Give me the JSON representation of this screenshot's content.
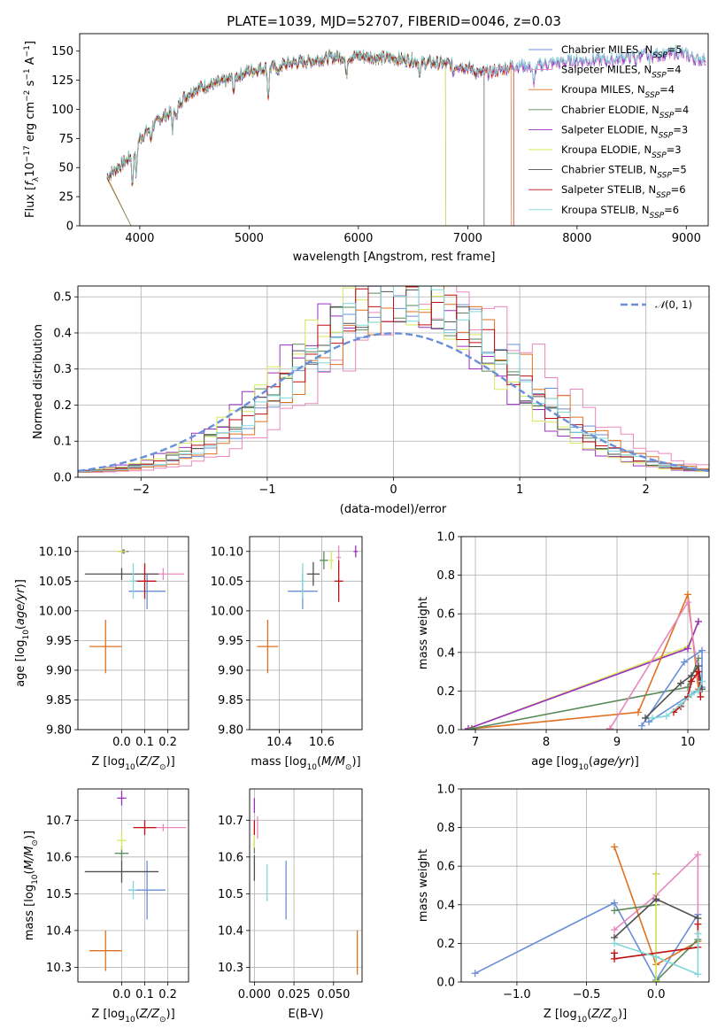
{
  "figure": {
    "title": "PLATE=1039, MJD=52707, FIBERID=0046, z=0.03"
  },
  "colors": {
    "Chabrier MILES": "#6a8fd8",
    "Salpeter MILES": "#e887be",
    "Kroupa MILES": "#e07020",
    "Chabrier ELODIE": "#5a8a5a",
    "Salpeter ELODIE": "#9b30c0",
    "Kroupa ELODIE": "#d6e85a",
    "Chabrier STELIB": "#505050",
    "Salpeter STELIB": "#c01010",
    "Kroupa STELIB": "#80d8d8"
  },
  "chart_data": [
    {
      "id": "spectrum",
      "type": "line",
      "title": "PLATE=1039, MJD=52707, FIBERID=0046, z=0.03",
      "xlabel": "wavelength [Angstrom, rest frame]",
      "ylabel": "Flux [f_λ 10^-17 erg cm^-2 s^-1 A^-1]",
      "xlim": [
        3450,
        9200
      ],
      "ylim": [
        0,
        165
      ],
      "xticks": [
        4000,
        5000,
        6000,
        7000,
        8000,
        9000
      ],
      "yticks": [
        0,
        25,
        50,
        75,
        100,
        125,
        150
      ],
      "grid": false,
      "legend_position": "top-right",
      "series": [
        {
          "name": "Chabrier MILES, N_SSP=5",
          "model": "Chabrier MILES",
          "nssp": "5"
        },
        {
          "name": "Salpeter MILES, N_SSP=4",
          "model": "Salpeter MILES",
          "nssp": "4"
        },
        {
          "name": "Kroupa MILES, N_SSP=4",
          "model": "Kroupa MILES",
          "nssp": "4"
        },
        {
          "name": "Chabrier ELODIE, N_SSP=4",
          "model": "Chabrier ELODIE",
          "nssp": "4"
        },
        {
          "name": "Salpeter ELODIE, N_SSP=3",
          "model": "Salpeter ELODIE",
          "nssp": "3"
        },
        {
          "name": "Kroupa ELODIE, N_SSP=3",
          "model": "Kroupa ELODIE",
          "nssp": "3"
        },
        {
          "name": "Chabrier STELIB, N_SSP=5",
          "model": "Chabrier STELIB",
          "nssp": "5"
        },
        {
          "name": "Salpeter STELIB, N_SSP=6",
          "model": "Salpeter STELIB",
          "nssp": "6"
        },
        {
          "name": "Kroupa STELIB, N_SSP=6",
          "model": "Kroupa STELIB",
          "nssp": "6"
        }
      ],
      "continuum": {
        "x": [
          3700,
          3800,
          3900,
          4000,
          4100,
          4200,
          4300,
          4400,
          4500,
          4600,
          4700,
          4800,
          4900,
          5000,
          5100,
          5200,
          5300,
          5400,
          5500,
          5600,
          5700,
          5800,
          5900,
          6000,
          6100,
          6200,
          6300,
          6400,
          6500,
          6600,
          6700,
          6800,
          6900,
          7000,
          7100,
          7200,
          7300,
          7400,
          7500,
          7600,
          7700,
          7800,
          7900,
          8000,
          8100,
          8200,
          8300,
          8400,
          8500,
          8600,
          8700,
          8800,
          8900,
          9000,
          9100
        ],
        "y": [
          42,
          50,
          58,
          75,
          84,
          93,
          98,
          110,
          117,
          120,
          122,
          125,
          129,
          133,
          135,
          136,
          138,
          140,
          141,
          142,
          144,
          145,
          145,
          146,
          145,
          144,
          144,
          143,
          142,
          140,
          140,
          139,
          138,
          136,
          131,
          132,
          134,
          137,
          138,
          136,
          139,
          140,
          141,
          142,
          142,
          143,
          142,
          144,
          146,
          147,
          147,
          147,
          149,
          147,
          143
        ]
      },
      "dips": [
        {
          "x": 3933,
          "depth": 30
        },
        {
          "x": 3968,
          "depth": 28
        },
        {
          "x": 4101,
          "depth": 10
        },
        {
          "x": 4300,
          "depth": 15
        },
        {
          "x": 4340,
          "depth": 12
        },
        {
          "x": 4861,
          "depth": 12
        },
        {
          "x": 5175,
          "depth": 25
        },
        {
          "x": 5270,
          "depth": 8
        },
        {
          "x": 5890,
          "depth": 18
        },
        {
          "x": 6563,
          "depth": 12
        },
        {
          "x": 6870,
          "depth": 8
        },
        {
          "x": 7605,
          "depth": 18
        },
        {
          "x": 8542,
          "depth": 6
        },
        {
          "x": 8662,
          "depth": 5
        }
      ],
      "cutoffs": [
        {
          "model": "Chabrier ELODIE",
          "x": 6800
        },
        {
          "model": "Kroupa ELODIE",
          "x": 6800
        },
        {
          "model": "Chabrier STELIB",
          "x": 7150
        },
        {
          "model": "Salpeter STELIB",
          "x": 7420
        },
        {
          "model": "Kroupa MILES",
          "x": 7400
        }
      ],
      "start_dropouts": [
        {
          "model": "Kroupa MILES",
          "x": 3920
        },
        {
          "model": "Chabrier ELODIE",
          "x": 3920
        }
      ]
    },
    {
      "id": "residuals",
      "type": "histogram",
      "xlabel": "(data-model)/error",
      "ylabel": "Normed distribution",
      "xlim": [
        -2.5,
        2.5
      ],
      "ylim": [
        0,
        0.53
      ],
      "xticks": [
        -2,
        -1,
        0,
        1,
        2
      ],
      "yticks": [
        0.0,
        0.1,
        0.2,
        0.3,
        0.4,
        0.5
      ],
      "grid": true,
      "legend_position": "top-right",
      "gaussian_label": "𝒩(0, 1)",
      "gaussian_color": "#6a8fd8",
      "bin_width": 0.1,
      "bin_start": -2.5,
      "models": [
        "Chabrier MILES",
        "Salpeter MILES",
        "Kroupa MILES",
        "Chabrier ELODIE",
        "Salpeter ELODIE",
        "Kroupa ELODIE",
        "Chabrier STELIB",
        "Salpeter STELIB",
        "Kroupa STELIB"
      ],
      "shifts": [
        0.18,
        0.38,
        0.22,
        0.02,
        -0.08,
        -0.05,
        0.05,
        0.08,
        0.12
      ]
    },
    {
      "id": "age-vs-Z",
      "type": "scatter",
      "xlabel": "Z [log10(Z/Z☉)]",
      "ylabel": "age  [log10(age/yr)]",
      "xlim": [
        -0.19,
        0.29
      ],
      "ylim": [
        9.8,
        10.125
      ],
      "xticks": [
        0.0,
        0.1,
        0.2
      ],
      "yticks": [
        9.8,
        9.85,
        9.9,
        9.95,
        10.0,
        10.05,
        10.1
      ],
      "grid": true,
      "points": [
        {
          "model": "Chabrier MILES",
          "x": 0.11,
          "y": 10.033,
          "xerr": 0.08,
          "yerr": 0.03
        },
        {
          "model": "Salpeter MILES",
          "x": 0.18,
          "y": 10.062,
          "xerr": 0.09,
          "yerr": 0.01
        },
        {
          "model": "Kroupa MILES",
          "x": -0.07,
          "y": 9.94,
          "xerr": 0.07,
          "yerr": 0.045
        },
        {
          "model": "Chabrier ELODIE",
          "x": 0.01,
          "y": 10.1,
          "xerr": 0.02,
          "yerr": 0.004
        },
        {
          "model": "Salpeter ELODIE",
          "x": 0.005,
          "y": 10.1,
          "xerr": 0.015,
          "yerr": 0.003
        },
        {
          "model": "Kroupa ELODIE",
          "x": 0.0,
          "y": 10.1,
          "xerr": 0.02,
          "yerr": 0.003
        },
        {
          "model": "Chabrier STELIB",
          "x": 0.0,
          "y": 10.062,
          "xerr": 0.16,
          "yerr": 0.01
        },
        {
          "model": "Salpeter STELIB",
          "x": 0.1,
          "y": 10.05,
          "xerr": 0.05,
          "yerr": 0.03
        },
        {
          "model": "Kroupa STELIB",
          "x": 0.05,
          "y": 10.05,
          "xerr": 0.015,
          "yerr": 0.03
        }
      ]
    },
    {
      "id": "age-vs-mass",
      "type": "scatter",
      "xlabel": "mass [log10(M/M☉)]",
      "ylabel": "",
      "xlim": [
        10.26,
        10.79
      ],
      "ylim": [
        9.8,
        10.125
      ],
      "xticks": [
        10.4,
        10.6
      ],
      "yticks": [
        9.8,
        9.85,
        9.9,
        9.95,
        10.0,
        10.05,
        10.1
      ],
      "grid": true,
      "points": [
        {
          "model": "Chabrier MILES",
          "x": 10.51,
          "y": 10.033,
          "xerr": 0.07,
          "yerr": 0.03
        },
        {
          "model": "Salpeter MILES",
          "x": 10.68,
          "y": 10.09,
          "xerr": 0.01,
          "yerr": 0.02
        },
        {
          "model": "Kroupa MILES",
          "x": 10.345,
          "y": 9.94,
          "xerr": 0.05,
          "yerr": 0.045
        },
        {
          "model": "Chabrier ELODIE",
          "x": 10.61,
          "y": 10.085,
          "xerr": 0.02,
          "yerr": 0.015
        },
        {
          "model": "Salpeter ELODIE",
          "x": 10.76,
          "y": 10.1,
          "xerr": 0.01,
          "yerr": 0.01
        },
        {
          "model": "Kroupa ELODIE",
          "x": 10.645,
          "y": 10.085,
          "xerr": 0.01,
          "yerr": 0.015
        },
        {
          "model": "Chabrier STELIB",
          "x": 10.56,
          "y": 10.062,
          "xerr": 0.03,
          "yerr": 0.02
        },
        {
          "model": "Salpeter STELIB",
          "x": 10.68,
          "y": 10.05,
          "xerr": 0.02,
          "yerr": 0.035
        },
        {
          "model": "Kroupa STELIB",
          "x": 10.51,
          "y": 10.05,
          "xerr": 0.01,
          "yerr": 0.03
        }
      ]
    },
    {
      "id": "mass-vs-Z",
      "type": "scatter",
      "xlabel": "Z [log10(Z/Z☉)]",
      "ylabel": "mass [log10(M/M☉)]",
      "xlim": [
        -0.19,
        0.29
      ],
      "ylim": [
        10.26,
        10.785
      ],
      "xticks": [
        0.0,
        0.1,
        0.2
      ],
      "yticks": [
        10.3,
        10.4,
        10.5,
        10.6,
        10.7
      ],
      "grid": true,
      "points": [
        {
          "model": "Chabrier MILES",
          "x": 0.11,
          "y": 10.51,
          "xerr": 0.08,
          "yerr": 0.08
        },
        {
          "model": "Salpeter MILES",
          "x": 0.18,
          "y": 10.68,
          "xerr": 0.1,
          "yerr": 0.01
        },
        {
          "model": "Kroupa MILES",
          "x": -0.07,
          "y": 10.345,
          "xerr": 0.07,
          "yerr": 0.055
        },
        {
          "model": "Chabrier ELODIE",
          "x": 0.0,
          "y": 10.61,
          "xerr": 0.03,
          "yerr": 0.02
        },
        {
          "model": "Salpeter ELODIE",
          "x": 0.0,
          "y": 10.76,
          "xerr": 0.02,
          "yerr": 0.02
        },
        {
          "model": "Kroupa ELODIE",
          "x": 0.0,
          "y": 10.645,
          "xerr": 0.02,
          "yerr": 0.025
        },
        {
          "model": "Chabrier STELIB",
          "x": 0.0,
          "y": 10.56,
          "xerr": 0.16,
          "yerr": 0.03
        },
        {
          "model": "Salpeter STELIB",
          "x": 0.1,
          "y": 10.68,
          "xerr": 0.05,
          "yerr": 0.02
        },
        {
          "model": "Kroupa STELIB",
          "x": 0.05,
          "y": 10.51,
          "xerr": 0.015,
          "yerr": 0.025
        }
      ]
    },
    {
      "id": "mass-vs-EBV",
      "type": "scatter",
      "xlabel": "E(B-V)",
      "ylabel": "",
      "xlim": [
        -0.003,
        0.068
      ],
      "ylim": [
        10.26,
        10.785
      ],
      "xticks": [
        0.0,
        0.025,
        0.05
      ],
      "xtick_labels": [
        "0.000",
        "0.025",
        "0.050"
      ],
      "yticks": [
        10.3,
        10.4,
        10.5,
        10.6,
        10.7
      ],
      "grid": true,
      "points": [
        {
          "model": "Chabrier MILES",
          "x": 0.02,
          "y": 10.51,
          "xerr": 0,
          "yerr": 0.08
        },
        {
          "model": "Salpeter MILES",
          "x": 0.002,
          "y": 10.68,
          "xerr": 0,
          "yerr": 0.03
        },
        {
          "model": "Kroupa MILES",
          "x": 0.065,
          "y": 10.34,
          "xerr": 0,
          "yerr": 0.06
        },
        {
          "model": "Chabrier ELODIE",
          "x": 0.0,
          "y": 10.63,
          "xerr": 0,
          "yerr": 0.02
        },
        {
          "model": "Salpeter ELODIE",
          "x": 0.0,
          "y": 10.74,
          "xerr": 0,
          "yerr": 0.02
        },
        {
          "model": "Kroupa ELODIE",
          "x": 0.0,
          "y": 10.65,
          "xerr": 0,
          "yerr": 0.025
        },
        {
          "model": "Chabrier STELIB",
          "x": 0.0,
          "y": 10.57,
          "xerr": 0,
          "yerr": 0.035
        },
        {
          "model": "Salpeter STELIB",
          "x": 0.0,
          "y": 10.68,
          "xerr": 0,
          "yerr": 0.02
        },
        {
          "model": "Kroupa STELIB",
          "x": 0.008,
          "y": 10.53,
          "xerr": 0,
          "yerr": 0.05
        }
      ]
    },
    {
      "id": "weight-vs-age",
      "type": "line",
      "xlabel": "age  [log10(age/yr)]",
      "ylabel": "mass weight",
      "xlim": [
        6.8,
        10.3
      ],
      "ylim": [
        0,
        1.0
      ],
      "xticks": [
        7,
        8,
        9,
        10
      ],
      "yticks": [
        0.0,
        0.2,
        0.4,
        0.6,
        0.8,
        1.0
      ],
      "grid": true,
      "series": [
        {
          "model": "Kroupa ELODIE",
          "x": [
            6.9,
            10.0,
            10.15
          ],
          "y": [
            0.005,
            0.43,
            0.56
          ]
        },
        {
          "model": "Salpeter ELODIE",
          "x": [
            6.9,
            10.0,
            10.15
          ],
          "y": [
            0.005,
            0.42,
            0.56
          ]
        },
        {
          "model": "Kroupa MILES",
          "x": [
            6.95,
            9.3,
            10.0,
            10.15
          ],
          "y": [
            0.005,
            0.09,
            0.7,
            0.21
          ]
        },
        {
          "model": "Chabrier ELODIE",
          "x": [
            6.95,
            10.0,
            10.15
          ],
          "y": [
            0.005,
            0.22,
            0.37
          ]
        },
        {
          "model": "Salpeter MILES",
          "x": [
            8.9,
            10.0,
            10.15
          ],
          "y": [
            0.005,
            0.66,
            0.27
          ]
        },
        {
          "model": "Chabrier MILES",
          "x": [
            9.35,
            9.95,
            10.2,
            10.2,
            9.45
          ],
          "y": [
            0.02,
            0.35,
            0.41,
            0.22,
            0.04
          ]
        },
        {
          "model": "Chabrier STELIB",
          "x": [
            9.4,
            9.9,
            10.05,
            10.15,
            10.2
          ],
          "y": [
            0.06,
            0.24,
            0.28,
            0.33,
            0.21
          ]
        },
        {
          "model": "Salpeter STELIB",
          "x": [
            9.8,
            9.9,
            10.0,
            10.05,
            10.15,
            10.18
          ],
          "y": [
            0.09,
            0.12,
            0.17,
            0.25,
            0.3,
            0.17
          ]
        },
        {
          "model": "Kroupa STELIB",
          "x": [
            9.5,
            9.7,
            9.9,
            10.05,
            10.15,
            10.2
          ],
          "y": [
            0.06,
            0.07,
            0.13,
            0.18,
            0.2,
            0.25
          ]
        }
      ]
    },
    {
      "id": "weight-vs-Z",
      "type": "line",
      "xlabel": "Z [log10(Z/Z☉)]",
      "ylabel": "mass weight",
      "xlim": [
        -1.4,
        0.38
      ],
      "ylim": [
        0,
        1.0
      ],
      "xticks": [
        -1.0,
        -0.5,
        0.0
      ],
      "xtick_labels": [
        "−1.0",
        "−0.5",
        "0.0"
      ],
      "yticks": [
        0.0,
        0.2,
        0.4,
        0.6,
        0.8,
        1.0
      ],
      "grid": true,
      "series": [
        {
          "model": "Chabrier MILES",
          "x": [
            -1.3,
            -0.3,
            0.0,
            0.3
          ],
          "y": [
            0.045,
            0.41,
            0.01,
            0.35
          ]
        },
        {
          "model": "Salpeter MILES",
          "x": [
            -0.3,
            0.0,
            0.3,
            0.3
          ],
          "y": [
            0.27,
            0.45,
            0.66,
            0.25
          ]
        },
        {
          "model": "Kroupa MILES",
          "x": [
            -0.3,
            0.0,
            0.3
          ],
          "y": [
            0.7,
            0.09,
            0.21
          ]
        },
        {
          "model": "Chabrier ELODIE",
          "x": [
            -0.3,
            0.0,
            0.0,
            0.3
          ],
          "y": [
            0.37,
            0.4,
            0.005,
            0.22
          ]
        },
        {
          "model": "Salpeter ELODIE",
          "x": [
            0.0,
            0.0
          ],
          "y": [
            0.56,
            0.42
          ]
        },
        {
          "model": "Kroupa ELODIE",
          "x": [
            0.0,
            0.0
          ],
          "y": [
            0.56,
            0.005
          ]
        },
        {
          "model": "Chabrier STELIB",
          "x": [
            -0.3,
            0.0,
            0.3
          ],
          "y": [
            0.23,
            0.43,
            0.33
          ]
        },
        {
          "model": "Salpeter STELIB",
          "x": [
            -0.3,
            -0.3,
            0.3,
            0.3
          ],
          "y": [
            0.15,
            0.12,
            0.18,
            0.3
          ]
        },
        {
          "model": "Kroupa STELIB",
          "x": [
            -0.3,
            0.0,
            0.3,
            0.3
          ],
          "y": [
            0.2,
            0.13,
            0.04,
            0.25
          ]
        }
      ]
    }
  ]
}
